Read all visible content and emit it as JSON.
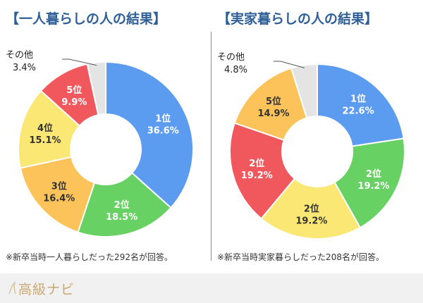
{
  "chart_data": [
    {
      "type": "pie",
      "variant": "donut",
      "title": "【一人暮らしの人の結果】",
      "note": "※新卒当時一人暮らしだった292名が回答。",
      "slices": [
        {
          "name": "1位",
          "value": 36.6,
          "value_label": "36.6%",
          "color": "#5b9cf0"
        },
        {
          "name": "2位",
          "value": 18.5,
          "value_label": "18.5%",
          "color": "#67d163"
        },
        {
          "name": "3位",
          "value": 16.4,
          "value_label": "16.4%",
          "color": "#fbc35a"
        },
        {
          "name": "4位",
          "value": 15.1,
          "value_label": "15.1%",
          "color": "#fbe774"
        },
        {
          "name": "5位",
          "value": 9.9,
          "value_label": "9.9%",
          "color": "#f1585e"
        },
        {
          "name": "その他",
          "value": 3.4,
          "value_label": "3.4%",
          "color": "#e4e4e4",
          "callout": true
        }
      ]
    },
    {
      "type": "pie",
      "variant": "donut",
      "title": "【実家暮らしの人の結果】",
      "note": "※新卒当時実家暮らしだった208名が回答。",
      "slices": [
        {
          "name": "1位",
          "value": 22.6,
          "value_label": "22.6%",
          "color": "#5b9cf0"
        },
        {
          "name": "2位",
          "value": 19.2,
          "value_label": "19.2%",
          "color": "#67d163"
        },
        {
          "name": "2位",
          "value": 19.2,
          "value_label": "19.2%",
          "color": "#fbe774"
        },
        {
          "name": "2位",
          "value": 19.2,
          "value_label": "19.2%",
          "color": "#f1585e"
        },
        {
          "name": "5位",
          "value": 14.9,
          "value_label": "14.9%",
          "color": "#fbc35a"
        },
        {
          "name": "その他",
          "value": 4.8,
          "value_label": "4.8%",
          "color": "#e4e4e4",
          "callout": true
        }
      ]
    }
  ],
  "footer": {
    "brand": "高級ナビ"
  }
}
